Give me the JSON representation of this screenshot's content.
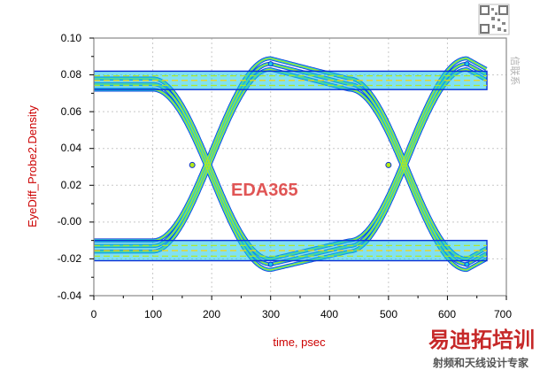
{
  "colors": {
    "axis_title": "#cc0000",
    "overlay_label": "#e05555",
    "eye_outer": "#0a2fd6",
    "eye_mid": "#19c9e8",
    "eye_core": "#b5ea17",
    "eye_hot": "#ffd400",
    "watermark_brand": "#c62828"
  },
  "chart": {
    "overlay_label": "EDA365"
  },
  "watermark": {
    "brand": "易迪拓培训",
    "subtitle": "射频和天线设计专家",
    "side_text": "信联系",
    "qr_icon": "qr-code-icon"
  },
  "chart_data": {
    "type": "eye-diagram-density",
    "title": "",
    "xlabel": "time, psec",
    "ylabel": "EyeDiff_Probe2.Density",
    "xlim": [
      0,
      700
    ],
    "ylim": [
      -0.04,
      0.1
    ],
    "x_ticks": [
      0,
      100,
      200,
      300,
      400,
      500,
      600,
      700
    ],
    "x_tick_labels": [
      "0",
      "100",
      "200",
      "300",
      "400",
      "500",
      "600",
      "700"
    ],
    "y_ticks": [
      -0.04,
      -0.02,
      0.0,
      0.02,
      0.04,
      0.06,
      0.08,
      0.1
    ],
    "y_tick_labels": [
      "-0.04",
      "-0.02",
      "-0.00",
      "0.02",
      "0.04",
      "0.06",
      "0.08",
      "0.10"
    ],
    "grid": true,
    "data_x_range": [
      0,
      667
    ],
    "levels": {
      "high": 0.075,
      "low": -0.013
    },
    "high_band": [
      0.072,
      0.082
    ],
    "low_band": [
      -0.021,
      -0.01
    ],
    "crossings": [
      {
        "x": 167,
        "y": 0.031
      },
      {
        "x": 500,
        "y": 0.031
      }
    ],
    "transitions": [
      {
        "from_x": 100,
        "to_x": 300,
        "direction": "rising-and-falling"
      },
      {
        "from_x": 433,
        "to_x": 633,
        "direction": "rising-and-falling"
      }
    ],
    "peaks": [
      {
        "x": 300,
        "y": 0.086
      },
      {
        "x": 633,
        "y": 0.086
      },
      {
        "x": 300,
        "y": -0.023
      },
      {
        "x": 633,
        "y": -0.023
      }
    ]
  }
}
